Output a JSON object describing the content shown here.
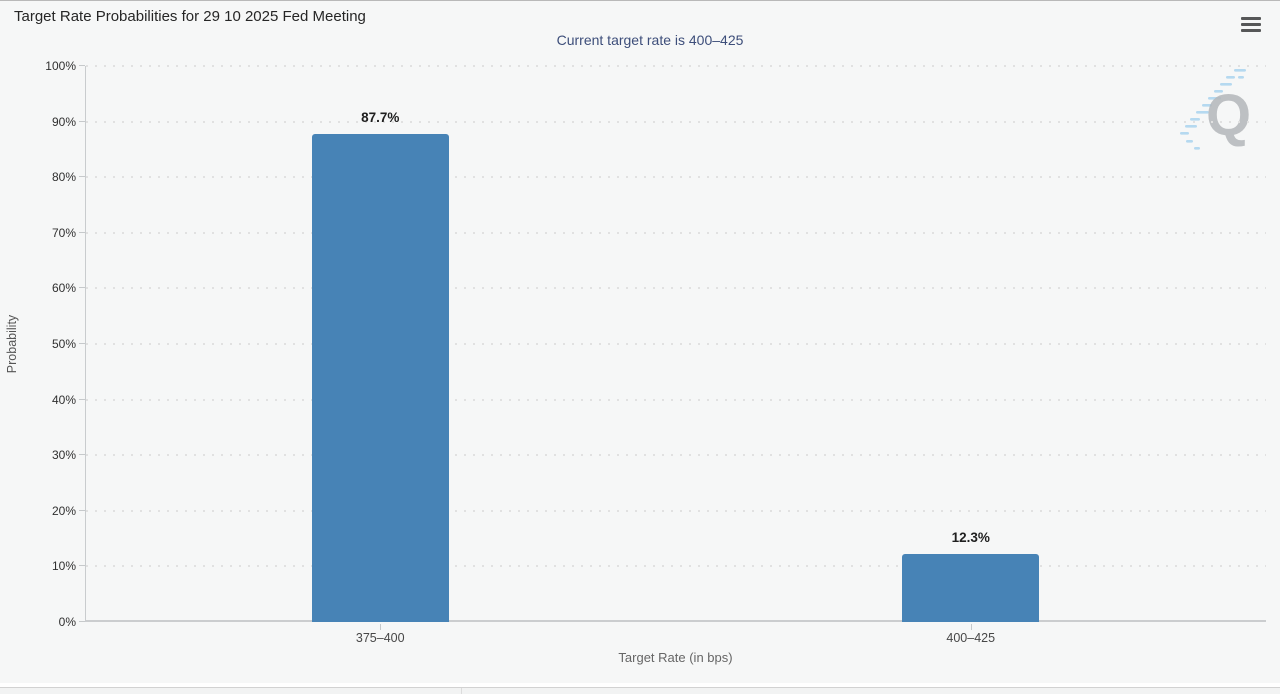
{
  "chart_data": {
    "type": "bar",
    "title": "Target Rate Probabilities for 29 10 2025 Fed Meeting",
    "subtitle": "Current target rate is 400–425",
    "categories": [
      "375–400",
      "400–425"
    ],
    "values": [
      87.7,
      12.3
    ],
    "value_labels": [
      "87.7%",
      "12.3%"
    ],
    "xlabel": "Target Rate (in bps)",
    "ylabel": "Probability",
    "ylim": [
      0,
      100
    ],
    "ytick_step": 10,
    "ytick_labels": [
      "0%",
      "10%",
      "20%",
      "30%",
      "40%",
      "50%",
      "60%",
      "70%",
      "80%",
      "90%",
      "100%"
    ],
    "grid": "dotted-horizontal",
    "legend": "none",
    "bar_color": "#4783b6",
    "background_color": "#f6f7f7",
    "subtitle_color": "#3d4e7a"
  },
  "branding": {
    "watermark_letter": "Q"
  },
  "menu": {
    "export_menu": "chart context menu"
  }
}
